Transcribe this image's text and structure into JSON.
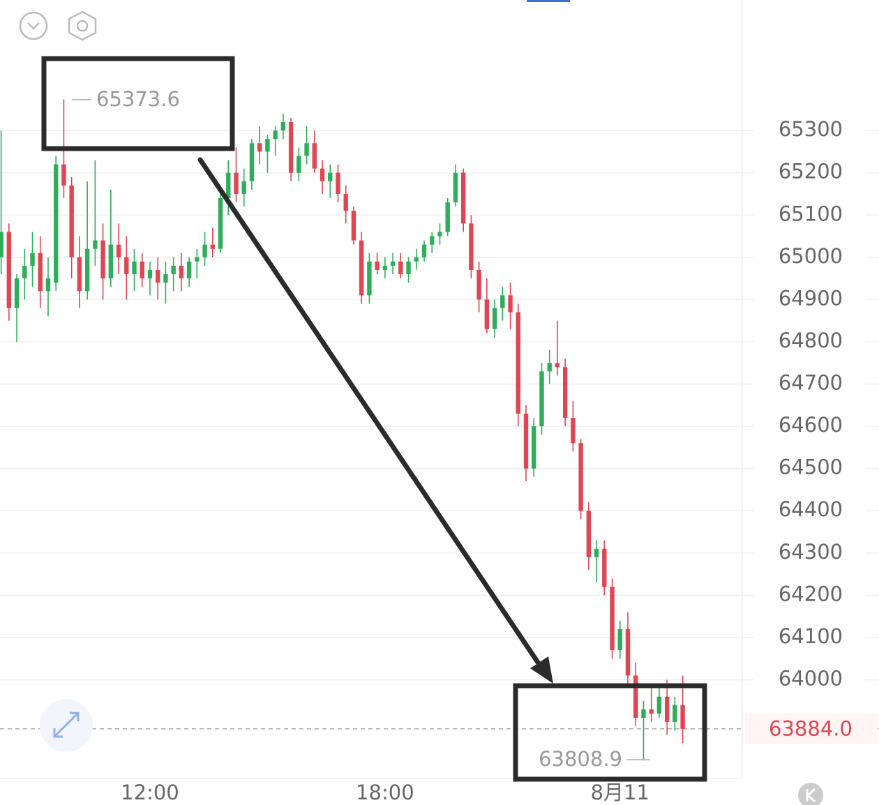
{
  "chart_data": {
    "type": "candlestick",
    "up_color": "#2eae5a",
    "down_color": "#e04552",
    "categories": [
      null,
      null,
      null,
      null,
      null,
      null,
      null,
      null,
      null,
      null,
      null,
      null,
      null,
      null,
      null,
      null,
      null,
      null,
      null,
      "12:00",
      null,
      null,
      null,
      null,
      null,
      null,
      null,
      null,
      null,
      null,
      null,
      null,
      null,
      null,
      null,
      null,
      null,
      null,
      null,
      null,
      null,
      null,
      null,
      null,
      null,
      null,
      null,
      null,
      null,
      "18:00",
      null,
      null,
      null,
      null,
      null,
      null,
      null,
      null,
      null,
      null,
      null,
      null,
      null,
      null,
      null,
      null,
      null,
      null,
      null,
      null,
      null,
      null,
      null,
      null,
      null,
      null,
      null,
      null,
      null,
      "8月11",
      null,
      null,
      null,
      null,
      null,
      null,
      null,
      null
    ],
    "open": [
      65000,
      65060,
      64880,
      64950,
      64980,
      65010,
      64920,
      64940,
      65220,
      65170,
      65000,
      64920,
      65020,
      65040,
      64950,
      65030,
      65000,
      64960,
      64990,
      64950,
      64970,
      64940,
      64960,
      64980,
      64950,
      64990,
      65000,
      65030,
      65020,
      65140,
      65200,
      65150,
      65180,
      65270,
      65250,
      65280,
      65300,
      65320,
      65200,
      65240,
      65270,
      65210,
      65180,
      65200,
      65150,
      65110,
      65040,
      64910,
      64990,
      64970,
      64980,
      64990,
      64960,
      64990,
      65000,
      65030,
      65050,
      65060,
      65130,
      65200,
      65080,
      64970,
      64900,
      64830,
      64880,
      64910,
      64870,
      64630,
      64500,
      64600,
      64730,
      64750,
      64740,
      64620,
      64560,
      64400,
      64290,
      64310,
      64220,
      64070,
      64120,
      64010,
      63910,
      63930,
      63920,
      63960,
      63900,
      63940
    ],
    "high": [
      65300,
      65080,
      64960,
      65020,
      65060,
      65050,
      65000,
      65240,
      65373.6,
      65190,
      65050,
      65180,
      65230,
      65080,
      65160,
      65080,
      65050,
      65020,
      65010,
      64990,
      65000,
      64990,
      65000,
      65010,
      65000,
      65020,
      65060,
      65070,
      65150,
      65230,
      65260,
      65210,
      65280,
      65310,
      65290,
      65310,
      65340,
      65330,
      65260,
      65310,
      65300,
      65230,
      65220,
      65220,
      65170,
      65120,
      65060,
      65010,
      65010,
      65000,
      65010,
      65010,
      65000,
      65020,
      65040,
      65060,
      65080,
      65140,
      65220,
      65210,
      65100,
      64990,
      64950,
      64900,
      64930,
      64940,
      64890,
      64650,
      64620,
      64750,
      64780,
      64850,
      64760,
      64660,
      64570,
      64420,
      64330,
      64330,
      64240,
      64140,
      64160,
      64040,
      63950,
      63990,
      63990,
      64000,
      63960,
      64010
    ],
    "low": [
      64960,
      64850,
      64800,
      64900,
      64930,
      64880,
      64860,
      64920,
      65140,
      64950,
      64880,
      64900,
      64980,
      64900,
      64930,
      64960,
      64900,
      64920,
      64930,
      64910,
      64900,
      64890,
      64920,
      64920,
      64930,
      64950,
      64980,
      65000,
      65010,
      65100,
      65130,
      65120,
      65160,
      65220,
      65200,
      65240,
      65280,
      65180,
      65180,
      65220,
      65200,
      65150,
      65140,
      65130,
      65080,
      65030,
      64890,
      64890,
      64960,
      64950,
      64960,
      64950,
      64940,
      64970,
      64990,
      65010,
      65030,
      65050,
      65120,
      65060,
      64950,
      64870,
      64820,
      64810,
      64850,
      64830,
      64600,
      64470,
      64480,
      64580,
      64700,
      64720,
      64600,
      64540,
      64380,
      64260,
      64230,
      64200,
      64050,
      64050,
      63990,
      63890,
      63808.9,
      63900,
      63910,
      63870,
      63880,
      63850
    ],
    "close": [
      65060,
      64880,
      64950,
      64980,
      65010,
      64920,
      64950,
      65220,
      65170,
      65000,
      64920,
      65020,
      65040,
      64950,
      65030,
      65000,
      64960,
      64990,
      64950,
      64970,
      64940,
      64960,
      64980,
      64950,
      64990,
      65000,
      65030,
      65020,
      65140,
      65200,
      65150,
      65180,
      65270,
      65250,
      65280,
      65300,
      65320,
      65200,
      65240,
      65270,
      65210,
      65180,
      65200,
      65150,
      65110,
      65040,
      64910,
      64990,
      64970,
      64980,
      64990,
      64960,
      64990,
      65000,
      65030,
      65050,
      65060,
      65130,
      65200,
      65080,
      64970,
      64900,
      64830,
      64880,
      64910,
      64870,
      64630,
      64500,
      64600,
      64730,
      64750,
      64740,
      64620,
      64560,
      64400,
      64290,
      64310,
      64220,
      64070,
      64120,
      64010,
      63910,
      63930,
      63920,
      63960,
      63900,
      63940,
      63884
    ],
    "ylim": [
      63768,
      65609
    ],
    "yticks": [
      64000,
      64100,
      64200,
      64300,
      64400,
      64500,
      64600,
      64700,
      64800,
      64900,
      65000,
      65100,
      65200,
      65300
    ],
    "grid": true,
    "last_price": {
      "value": 63884,
      "label": "63884.0"
    },
    "max_label": 65373.6,
    "min_label": 63808.9
  }
}
